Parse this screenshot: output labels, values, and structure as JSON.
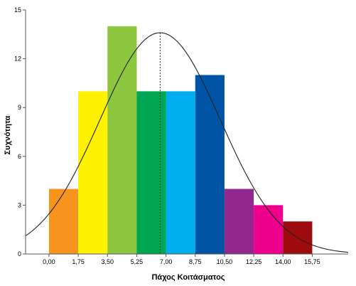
{
  "chart_data": {
    "type": "bar",
    "subtype": "histogram-with-normal-curve",
    "xlabel": "Πάχος Κοιτάσματος",
    "ylabel": "Συχνότητα",
    "xlim": [
      -1.4,
      17.9
    ],
    "ylim": [
      0,
      15
    ],
    "x_ticks": [
      "0,00",
      "1,75",
      "3,50",
      "5,25",
      "7,00",
      "8,75",
      "10,50",
      "12,25",
      "14,00",
      "15,75"
    ],
    "x_tick_values": [
      0,
      1.75,
      3.5,
      5.25,
      7.0,
      8.75,
      10.5,
      12.25,
      14.0,
      15.75
    ],
    "y_ticks": [
      "0",
      "3",
      "6",
      "9",
      "12",
      "15"
    ],
    "y_tick_values": [
      0,
      3,
      6,
      9,
      12,
      15
    ],
    "bins": [
      {
        "start": 0.0,
        "end": 1.75,
        "value": 4,
        "color": "#f7941d"
      },
      {
        "start": 1.75,
        "end": 3.5,
        "value": 10,
        "color": "#fff200"
      },
      {
        "start": 3.5,
        "end": 5.25,
        "value": 14,
        "color": "#8dc63f"
      },
      {
        "start": 5.25,
        "end": 7.0,
        "value": 10,
        "color": "#00a651"
      },
      {
        "start": 7.0,
        "end": 8.75,
        "value": 10,
        "color": "#00aeef"
      },
      {
        "start": 8.75,
        "end": 10.5,
        "value": 11,
        "color": "#0054a6"
      },
      {
        "start": 10.5,
        "end": 12.25,
        "value": 4,
        "color": "#92278f"
      },
      {
        "start": 12.25,
        "end": 14.0,
        "value": 3,
        "color": "#ec008c"
      },
      {
        "start": 14.0,
        "end": 15.75,
        "value": 2,
        "color": "#9e0b0f"
      }
    ],
    "normal_curve": {
      "mean": 6.65,
      "sd": 3.6,
      "peak": 13.6
    },
    "mean_line": {
      "x": 6.65,
      "style": "dotted"
    },
    "grid": false,
    "legend": "none"
  }
}
